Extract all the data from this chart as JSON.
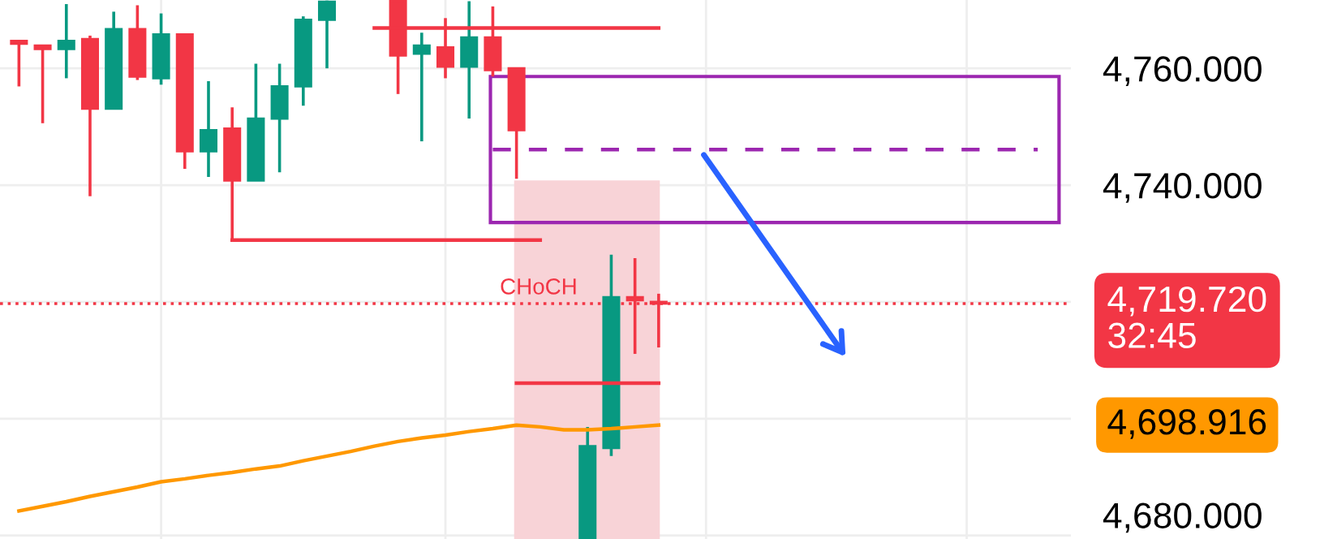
{
  "chart_data": {
    "type": "candlestick",
    "categories": [
      null,
      null,
      null,
      null,
      null,
      null,
      null,
      null,
      null,
      null,
      null,
      null,
      null,
      null,
      null,
      null,
      null,
      null,
      null,
      null,
      null,
      null,
      null,
      null,
      null,
      null,
      null,
      null,
      null,
      null,
      null,
      null,
      null,
      null,
      null,
      null,
      null,
      null,
      null,
      null,
      null,
      null,
      null,
      null,
      null
    ],
    "ohlc": [
      [
        4764.7,
        4764.7,
        4756.9,
        4764.2
      ],
      [
        4763.9,
        4763.9,
        4750.6,
        4763.3
      ],
      [
        4763.3,
        4771.0,
        4758.3,
        4764.7
      ],
      [
        4765.0,
        4765.6,
        4738.1,
        4753.1
      ],
      [
        4753.1,
        4769.7,
        4753.1,
        4766.7
      ],
      [
        4766.7,
        4770.8,
        4758.0,
        4758.6
      ],
      [
        4758.3,
        4769.4,
        4757.2,
        4765.8
      ],
      [
        4765.8,
        4765.8,
        4742.8,
        4745.8
      ],
      [
        4745.8,
        4757.8,
        4741.4,
        4749.4
      ],
      [
        4749.7,
        4753.3,
        4730.6,
        4740.8
      ],
      [
        4740.8,
        4760.8,
        4740.8,
        4751.4
      ],
      [
        4751.4,
        4760.8,
        4742.2,
        4756.9
      ],
      [
        4756.9,
        4768.9,
        4753.6,
        4768.3
      ],
      [
        4768.3,
        4771.6,
        4760.0,
        4771.4
      ],
      null,
      null,
      [
        4771.5,
        4771.6,
        4755.6,
        4762.2
      ],
      [
        4762.5,
        4766.1,
        4747.5,
        4763.9
      ],
      [
        4763.6,
        4768.6,
        4758.3,
        4760.3
      ],
      [
        4760.3,
        4771.5,
        4751.4,
        4765.3
      ],
      [
        4765.3,
        4770.6,
        4758.6,
        4759.7
      ],
      [
        4760.0,
        4760.0,
        4741.1,
        4749.4
      ],
      null,
      null,
      [
        4679.5,
        4698.6,
        4679.5,
        4695.3
      ],
      [
        4695.0,
        4728.1,
        4693.6,
        4720.8
      ],
      [
        4720.8,
        4727.5,
        4711.1,
        4720.3
      ],
      [
        4720.0,
        4721.4,
        4712.2,
        4719.72
      ],
      null,
      null,
      null,
      null,
      null,
      null,
      null,
      null,
      null,
      null,
      null,
      null,
      null,
      null,
      null,
      null,
      null
    ],
    "colors": [
      "#f23645",
      "#f23645",
      "#089981",
      "#f23645",
      "#089981",
      "#f23645",
      "#089981",
      "#f23645",
      "#089981",
      "#f23645",
      "#089981",
      "#089981",
      "#089981",
      "#089981",
      null,
      null,
      "#f23645",
      "#089981",
      "#f23645",
      "#089981",
      "#f23645",
      "#f23645",
      null,
      null,
      "#089981",
      "#089981",
      "#f23645",
      "#f23645",
      null,
      null,
      null,
      null,
      null,
      null,
      null,
      null,
      null,
      null,
      null,
      null,
      null,
      null,
      null,
      null,
      null
    ],
    "series": [
      {
        "type": "line",
        "color": "#ff9800",
        "values": [
          4684.2,
          4685.0,
          4685.8,
          4686.7,
          4687.5,
          4688.3,
          4689.2,
          4689.7,
          4690.3,
          4690.8,
          4691.4,
          4691.9,
          4692.8,
          4693.6,
          4694.4,
          4695.3,
          4696.1,
          4696.7,
          4697.2,
          4697.8,
          4698.3,
          4698.9,
          4698.6,
          4698.1,
          4698.1,
          4698.3,
          4698.6,
          4698.916,
          null,
          null,
          null,
          null,
          null,
          null,
          null,
          null,
          null,
          null,
          null,
          null,
          null,
          null,
          null,
          null,
          null
        ]
      },
      {
        "type": "line",
        "color": "#f23645",
        "values": [
          null,
          null,
          null,
          null,
          null,
          null,
          null,
          null,
          null,
          null,
          null,
          null,
          null,
          null,
          null,
          4766.9,
          4766.9,
          4766.9,
          4766.9,
          4766.9,
          4766.9,
          4766.9,
          4766.9,
          4766.9,
          4766.9,
          4766.9,
          4766.9,
          4766.9,
          null,
          null,
          null,
          null,
          null,
          null,
          null,
          null,
          null,
          null,
          null,
          null,
          null,
          null,
          null,
          null,
          null
        ]
      },
      {
        "type": "line",
        "color": "#f23645",
        "values": [
          null,
          null,
          null,
          null,
          null,
          null,
          null,
          null,
          null,
          4730.6,
          4730.6,
          4730.6,
          4730.6,
          4730.6,
          4730.6,
          4730.6,
          4730.6,
          4730.6,
          4730.6,
          4730.6,
          4730.6,
          4730.6,
          4730.6,
          null,
          null,
          null,
          null,
          null,
          null,
          null,
          null,
          null,
          null,
          null,
          null,
          null,
          null,
          null,
          null,
          null,
          null,
          null,
          null,
          null,
          null
        ]
      },
      {
        "type": "line",
        "color": "#9c27b0",
        "line_style": "dashed",
        "values": [
          null,
          null,
          null,
          null,
          null,
          null,
          null,
          null,
          null,
          null,
          null,
          null,
          null,
          null,
          null,
          null,
          null,
          null,
          null,
          null,
          4746.1,
          4746.1,
          4746.1,
          4746.1,
          4746.1,
          4746.1,
          4746.1,
          4746.1,
          4746.1,
          4746.1,
          4746.1,
          4746.1,
          4746.1,
          4746.1,
          4746.1,
          4746.1,
          4746.1,
          4746.1,
          4746.1,
          4746.1,
          4746.1,
          4746.1,
          4746.1,
          4746.1,
          null
        ]
      },
      {
        "type": "line",
        "color": "#f23645",
        "values": [
          null,
          null,
          null,
          null,
          null,
          null,
          null,
          null,
          null,
          null,
          null,
          null,
          null,
          null,
          null,
          null,
          null,
          null,
          null,
          null,
          null,
          4706.1,
          4706.1,
          4706.1,
          4706.1,
          4706.1,
          4706.1,
          4706.1,
          null,
          null,
          null,
          null,
          null,
          null,
          null,
          null,
          null,
          null,
          null,
          null,
          null,
          null,
          null,
          null,
          null
        ]
      }
    ],
    "ylim": [
      4679.4,
      4771.7
    ],
    "yticks": [
      {
        "value": 4680,
        "label": "4,680.000"
      },
      {
        "value": 4700,
        "label": null
      },
      {
        "value": 4720,
        "label": null
      },
      {
        "value": 4740,
        "label": "4,740.000"
      },
      {
        "value": 4760,
        "label": "4,760.000"
      }
    ],
    "ref_lines": [
      {
        "axis": "y",
        "value": 4719.72,
        "label": "4,719.720\n32:45",
        "color": "#f23645",
        "line_style": "dotted"
      }
    ],
    "annotations": [
      "CHoCH",
      "4,698.916"
    ],
    "grid": true,
    "tick_labels": "y"
  }
}
